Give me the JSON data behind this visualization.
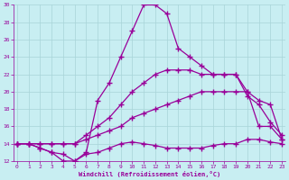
{
  "xlabel": "Windchill (Refroidissement éolien,°C)",
  "bg_color": "#c8eef2",
  "grid_color": "#a8d4d8",
  "line_color": "#990099",
  "xlim_min": -0.3,
  "xlim_max": 23.3,
  "ylim_min": 12,
  "ylim_max": 30,
  "yticks": [
    12,
    14,
    16,
    18,
    20,
    22,
    24,
    26,
    28,
    30
  ],
  "xticks": [
    0,
    1,
    2,
    3,
    4,
    5,
    6,
    7,
    8,
    9,
    10,
    11,
    12,
    13,
    14,
    15,
    16,
    17,
    18,
    19,
    20,
    21,
    22,
    23
  ],
  "line1_x": [
    0,
    1,
    2,
    3,
    4,
    5,
    6,
    7,
    8,
    9,
    10,
    11,
    12,
    13,
    14,
    15,
    16,
    17,
    18,
    19,
    20,
    21,
    22,
    23
  ],
  "line1_y": [
    14,
    14,
    13.5,
    13,
    12.8,
    12,
    12.8,
    13,
    13.5,
    14,
    14.2,
    14,
    13.8,
    13.5,
    13.5,
    13.5,
    13.5,
    13.8,
    14,
    14,
    14.5,
    14.5,
    14.2,
    14
  ],
  "line2_x": [
    0,
    1,
    2,
    3,
    4,
    5,
    6,
    7,
    8,
    9,
    10,
    11,
    12,
    13,
    14,
    15,
    16,
    17,
    18,
    19,
    20,
    21,
    22,
    23
  ],
  "line2_y": [
    14,
    14,
    14,
    14,
    14,
    14,
    14.5,
    15,
    15.5,
    16,
    17,
    17.5,
    18,
    18.5,
    19,
    19.5,
    20,
    20,
    20,
    20,
    20,
    19,
    18.5,
    14.5
  ],
  "line3_x": [
    0,
    1,
    2,
    3,
    4,
    5,
    6,
    7,
    8,
    9,
    10,
    11,
    12,
    13,
    14,
    15,
    16,
    17,
    18,
    19,
    20,
    21,
    22,
    23
  ],
  "line3_y": [
    14,
    14,
    14,
    14,
    14,
    14,
    15,
    16,
    17,
    18.5,
    20,
    21,
    22,
    22.5,
    22.5,
    22.5,
    22,
    22,
    22,
    22,
    19.5,
    18.5,
    16.5,
    15
  ],
  "line4_x": [
    0,
    1,
    2,
    3,
    4,
    5,
    6,
    7,
    8,
    9,
    10,
    11,
    12,
    13,
    14,
    15,
    16,
    17,
    18,
    19,
    20,
    21,
    22,
    23
  ],
  "line4_y": [
    14,
    14,
    13.5,
    13,
    12,
    12,
    13,
    19,
    21,
    24,
    27,
    30,
    30,
    29,
    25,
    24,
    23,
    22,
    22,
    22,
    20,
    16,
    16,
    14.5
  ]
}
